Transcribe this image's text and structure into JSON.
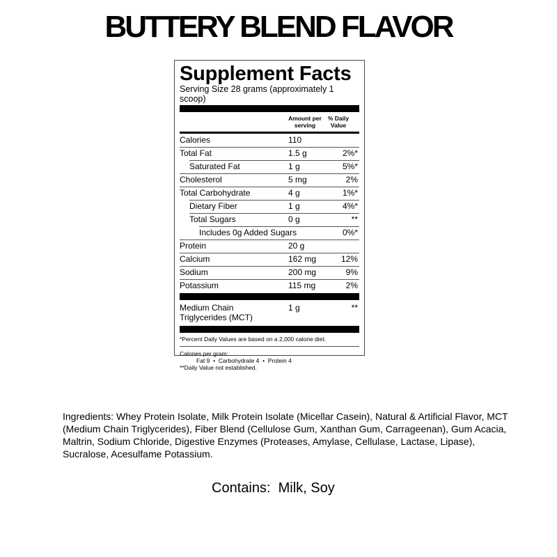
{
  "flavor_title": "BUTTERY BLEND FLAVOR",
  "facts": {
    "title": "Supplement Facts",
    "serving_size": "Serving Size 28 grams (approximately 1 scoop)",
    "col_amount": "Amount per serving",
    "col_dv": "% Daily Value",
    "rows": [
      {
        "label": "Calories",
        "amount": "110",
        "dv": "",
        "indent": 0
      },
      {
        "label": "Total Fat",
        "amount": "1.5 g",
        "dv": "2%*",
        "indent": 0
      },
      {
        "label": "Saturated Fat",
        "amount": "1 g",
        "dv": "5%*",
        "indent": 1
      },
      {
        "label": "Cholesterol",
        "amount": "5 mg",
        "dv": "2%",
        "indent": 0
      },
      {
        "label": "Total Carbohydrate",
        "amount": "4 g",
        "dv": "1%*",
        "indent": 0
      },
      {
        "label": "Dietary Fiber",
        "amount": "1 g",
        "dv": "4%*",
        "indent": 1
      },
      {
        "label": "Total Sugars",
        "amount": "0 g",
        "dv": "**",
        "indent": 1
      },
      {
        "label": "Includes 0g Added Sugars",
        "amount": "",
        "dv": "0%*",
        "indent": 2
      },
      {
        "label": "Protein",
        "amount": "20 g",
        "dv": "",
        "indent": 0
      },
      {
        "label": "Calcium",
        "amount": "162 mg",
        "dv": "12%",
        "indent": 0
      },
      {
        "label": "Sodium",
        "amount": "200 mg",
        "dv": "9%",
        "indent": 0
      },
      {
        "label": "Potassium",
        "amount": "115 mg",
        "dv": "2%",
        "indent": 0
      }
    ],
    "mct": {
      "label": "Medium Chain Triglycerides (MCT)",
      "amount": "1 g",
      "dv": "**"
    },
    "footnote_dv": "*Percent Daily Values are based on a 2,000 calorie diet.",
    "calories_per_gram_label": "Calories per gram:",
    "calories_per_gram": "Fat 9  •  Carbohydrate 4  •  Protein 4",
    "footnote_not_established": "**Daily Value not established."
  },
  "ingredients": "Ingredients: Whey Protein Isolate, Milk Protein Isolate (Micellar Casein), Natural & Artificial Flavor, MCT (Medium Chain Triglycerides), Fiber Blend (Cellulose Gum, Xanthan Gum, Carrageenan), Gum Acacia, Maltrin, Sodium Chloride, Digestive Enzymes (Proteases, Amylase, Cellulase, Lactase, Lipase), Sucralose, Acesulfame Potassium.",
  "contains": "Contains:  Milk, Soy"
}
